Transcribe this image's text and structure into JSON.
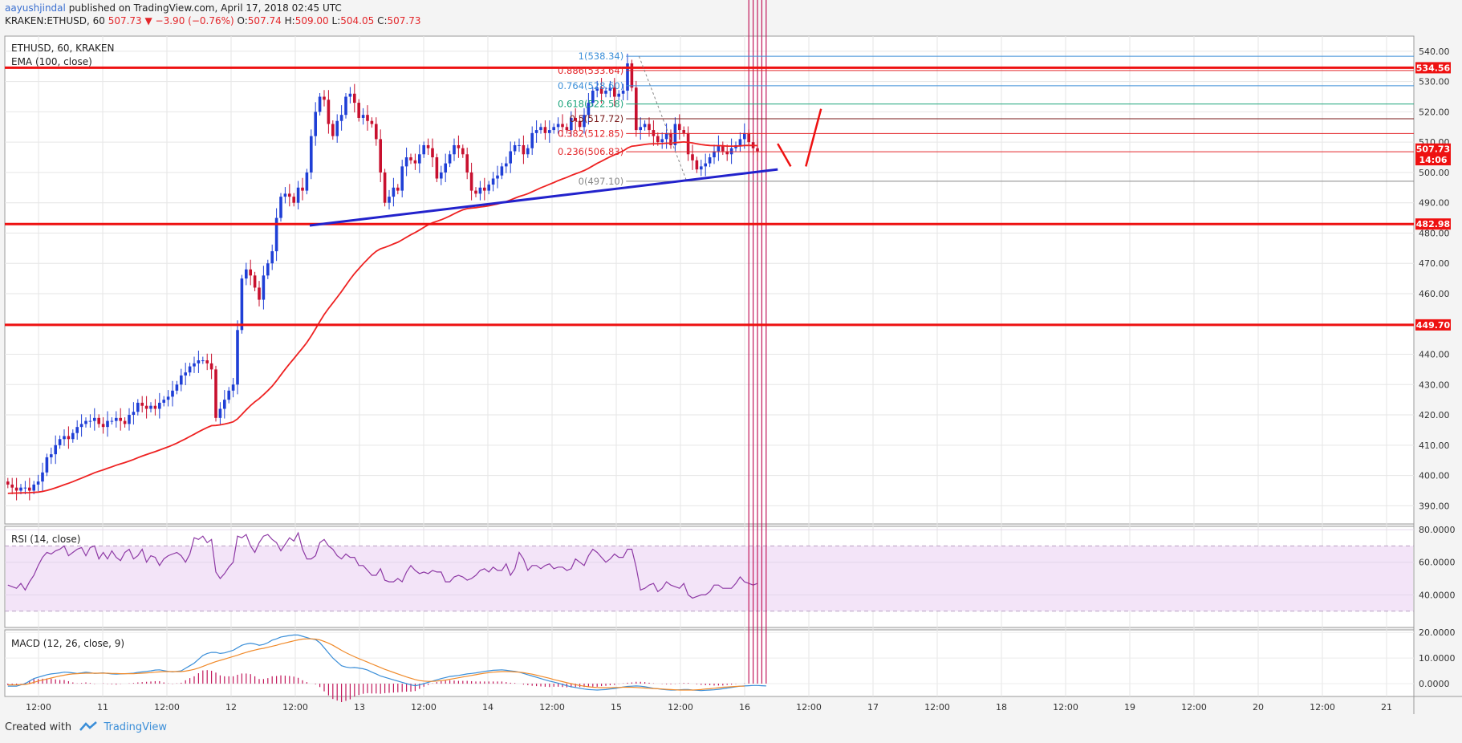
{
  "header": {
    "author": "aayushjindal",
    "published": "published on TradingView.com, April 17, 2018 02:45 UTC",
    "symbol": "KRAKEN:ETHUSD, 60",
    "change": "507.73 ▼ −3.90 (−0.76%)",
    "o_label": "O:",
    "o": "507.74",
    "h_label": "H:",
    "h": "509.00",
    "l_label": "L:",
    "l": "504.05",
    "c_label": "C:",
    "c": "507.73"
  },
  "legend": {
    "main": "ETHUSD, 60, KRAKEN",
    "ema": "EMA (100, close)",
    "rsi": "RSI (14, close)",
    "macd": "MACD (12, 26, close, 9)"
  },
  "footer": {
    "created": "Created with",
    "brand": "TradingView"
  },
  "colors": {
    "up": "#1f3fd6",
    "down": "#c8102e",
    "ema": "#ee2222",
    "hline": "#ee1111",
    "trend": "#2222cc",
    "rsi": "#8e3aa5",
    "rsi_band": "#f3e4f8",
    "macd": "#3a8ed8",
    "signal": "#f08a2a",
    "hist": "#c2185b"
  },
  "chart_data": [
    {
      "type": "candlestick",
      "title": "ETHUSD, 60, KRAKEN",
      "xlabel": "",
      "ylabel": "",
      "x_ticks": [
        "12:00",
        "11",
        "12:00",
        "12",
        "12:00",
        "13",
        "12:00",
        "14",
        "12:00",
        "15",
        "12:00",
        "16",
        "12:00",
        "17",
        "12:00",
        "18",
        "12:00",
        "19",
        "12:00",
        "20",
        "12:00",
        "21"
      ],
      "y_ticks": [
        390,
        400,
        410,
        420,
        430,
        440,
        450,
        460,
        470,
        480,
        490,
        500,
        510,
        520,
        530,
        540
      ],
      "ylim": [
        384,
        545
      ],
      "closes": [
        397,
        396,
        395,
        396,
        396,
        395,
        397,
        398,
        401,
        406,
        407,
        410,
        412,
        413,
        412,
        414,
        416,
        417,
        418,
        418,
        419,
        417,
        416,
        418,
        418,
        419,
        418,
        417,
        420,
        421,
        424,
        423,
        422,
        423,
        422,
        424,
        425,
        426,
        428,
        430,
        433,
        434,
        436,
        437,
        438,
        438,
        437,
        435,
        419,
        422,
        425,
        428,
        430,
        448,
        465,
        468,
        466,
        462,
        458,
        466,
        470,
        474,
        485,
        492,
        493,
        492,
        490,
        495,
        494,
        500,
        512,
        520,
        525,
        524,
        516,
        512,
        517,
        519,
        525,
        526,
        523,
        518,
        519,
        517,
        516,
        511,
        500,
        490,
        492,
        495,
        494,
        502,
        505,
        504,
        503,
        506,
        509,
        508,
        505,
        498,
        500,
        503,
        506,
        509,
        508,
        506,
        500,
        494,
        493,
        495,
        494,
        496,
        498,
        499,
        502,
        503,
        507,
        509,
        509,
        506,
        508,
        513,
        514,
        515,
        513,
        514,
        515,
        516,
        515,
        514,
        518,
        517,
        515,
        519,
        523,
        527,
        528,
        526,
        527,
        528,
        525,
        526,
        527,
        536,
        528,
        514,
        515,
        516,
        514,
        512,
        510,
        511,
        513,
        509,
        516,
        514,
        513,
        506,
        504,
        501,
        502,
        503,
        505,
        507,
        509,
        507,
        506,
        508,
        509,
        511,
        513,
        510,
        508,
        507
      ],
      "moving_average": {
        "name": "EMA (100, close)",
        "start": 394,
        "end": 499
      },
      "horizontal_levels": [
        534.56,
        482.98,
        449.7
      ],
      "fibonacci": [
        {
          "label": "1(538.34)",
          "value": 538.34
        },
        {
          "label": "0.886(533.64)",
          "value": 533.64
        },
        {
          "label": "0.764(528.60)",
          "value": 528.6
        },
        {
          "label": "0.618(522.58)",
          "value": 522.58
        },
        {
          "label": "0.5(517.72)",
          "value": 517.72
        },
        {
          "label": "0.382(512.85)",
          "value": 512.85
        },
        {
          "label": "0.236(506.83)",
          "value": 506.83
        },
        {
          "label": "0(497.10)",
          "value": 497.1
        }
      ],
      "price_labels": [
        {
          "text": "534.56",
          "value": 534.56
        },
        {
          "text": "507.73",
          "value": 507.73
        },
        {
          "text": "14:06",
          "value": 504.2
        },
        {
          "text": "482.98",
          "value": 482.98
        },
        {
          "text": "449.70",
          "value": 449.7
        }
      ]
    },
    {
      "type": "line",
      "title": "RSI (14, close)",
      "y_ticks": [
        "80.0000",
        "60.0000",
        "40.0000"
      ],
      "ylim": [
        20,
        82
      ],
      "bands": [
        70,
        30
      ],
      "values": [
        46,
        45,
        44,
        47,
        43,
        48,
        52,
        58,
        63,
        66,
        65,
        67,
        68,
        70,
        64,
        66,
        68,
        69,
        64,
        69,
        70,
        62,
        66,
        62,
        67,
        63,
        61,
        66,
        68,
        62,
        64,
        68,
        60,
        64,
        63,
        58,
        62,
        64,
        65,
        66,
        64,
        60,
        65,
        75,
        74,
        76,
        72,
        74,
        54,
        50,
        53,
        57,
        60,
        76,
        75,
        77,
        70,
        66,
        72,
        76,
        77,
        74,
        72,
        67,
        71,
        75,
        73,
        78,
        68,
        62,
        62,
        64,
        72,
        74,
        70,
        68,
        64,
        62,
        65,
        63,
        63,
        58,
        58,
        55,
        52,
        52,
        56,
        49,
        48,
        48,
        50,
        48,
        54,
        58,
        55,
        53,
        54,
        53,
        55,
        54,
        54,
        48,
        48,
        51,
        52,
        51,
        49,
        50,
        52,
        55,
        56,
        54,
        57,
        55,
        55,
        59,
        52,
        56,
        66,
        62,
        55,
        58,
        58,
        56,
        58,
        59,
        56,
        57,
        57,
        55,
        56,
        62,
        60,
        58,
        64,
        68,
        66,
        63,
        60,
        62,
        65,
        63,
        63,
        68,
        68,
        57,
        43,
        44,
        46,
        47,
        42,
        44,
        48,
        46,
        45,
        44,
        47,
        40,
        38,
        39,
        40,
        40,
        42,
        46,
        46,
        44,
        44,
        44,
        47,
        51,
        48,
        47,
        46,
        47
      ]
    },
    {
      "type": "line",
      "title": "MACD (12, 26, close, 9)",
      "y_ticks": [
        "20.0000",
        "10.0000",
        "0.0000"
      ],
      "ylim": [
        -5,
        21
      ],
      "series": [
        {
          "name": "MACD",
          "values": [
            -1,
            -1,
            -1,
            -0.5,
            0,
            1,
            2,
            2.5,
            3,
            3.5,
            3.8,
            4,
            4.2,
            4.5,
            4.4,
            4.2,
            4,
            4.2,
            4.5,
            4.3,
            4,
            4.1,
            4.2,
            4,
            3.8,
            3.7,
            3.8,
            3.9,
            4,
            4.1,
            4.4,
            4.6,
            4.8,
            5,
            5.3,
            5.4,
            5.1,
            4.8,
            4.6,
            4.8,
            5,
            6,
            7,
            8,
            9.5,
            11,
            11.8,
            12.2,
            12.2,
            11.8,
            12,
            12.5,
            13,
            14,
            15,
            15.5,
            15.8,
            15.5,
            15,
            15.3,
            16,
            17,
            17.5,
            18.2,
            18.5,
            18.8,
            19,
            19,
            18.5,
            18,
            17.5,
            17.2,
            16,
            14,
            12,
            10,
            8.5,
            7,
            6.5,
            6.2,
            6.3,
            6.1,
            5.8,
            5.3,
            4.5,
            3.8,
            3,
            2.5,
            2,
            1.5,
            1,
            0.5,
            0,
            -0.5,
            -0.8,
            -0.5,
            0,
            0.5,
            1,
            1.5,
            2,
            2.4,
            2.8,
            3,
            3.2,
            3.5,
            3.8,
            4,
            4.2,
            4.5,
            4.8,
            5,
            5.2,
            5.3,
            5.4,
            5.2,
            5,
            4.8,
            4.5,
            4,
            3.5,
            3,
            2.5,
            2,
            1.5,
            1,
            0.6,
            0.2,
            -0.3,
            -0.8,
            -1.2,
            -1.5,
            -1.8,
            -2.1,
            -2.3,
            -2.4,
            -2.5,
            -2.4,
            -2.3,
            -2.1,
            -1.9,
            -1.6,
            -1.3,
            -1.1,
            -1,
            -0.9,
            -1,
            -1.2,
            -1.5,
            -1.8,
            -2,
            -2.2,
            -2.4,
            -2.5,
            -2.5,
            -2.4,
            -2.3,
            -2.3,
            -2.5,
            -2.6,
            -2.7,
            -2.6,
            -2.5,
            -2.4,
            -2.2,
            -2,
            -1.7,
            -1.5,
            -1.2,
            -1,
            -0.9,
            -0.8,
            -0.7,
            -0.7,
            -0.8,
            -0.9
          ]
        },
        {
          "name": "Signal",
          "values": [
            -0.5,
            -0.5,
            -0.5,
            -0.4,
            -0.3,
            0,
            0.5,
            1,
            1.4,
            1.8,
            2.2,
            2.6,
            3,
            3.3,
            3.6,
            3.8,
            3.9,
            4,
            4.1,
            4.1,
            4.1,
            4.1,
            4.1,
            4.1,
            4,
            4,
            3.9,
            3.9,
            3.9,
            3.9,
            4,
            4.1,
            4.2,
            4.3,
            4.5,
            4.6,
            4.7,
            4.7,
            4.7,
            4.7,
            4.7,
            4.9,
            5.2,
            5.6,
            6.1,
            6.7,
            7.4,
            8,
            8.6,
            9.1,
            9.6,
            10.1,
            10.6,
            11.1,
            11.7,
            12.2,
            12.7,
            13.1,
            13.5,
            13.8,
            14.2,
            14.6,
            15,
            15.5,
            15.9,
            16.3,
            16.7,
            17.1,
            17.4,
            17.5,
            17.5,
            17.4,
            17.1,
            16.5,
            15.8,
            15,
            14,
            13,
            12.1,
            11.3,
            10.5,
            9.8,
            9.1,
            8.4,
            7.7,
            7,
            6.3,
            5.6,
            5,
            4.4,
            3.8,
            3.2,
            2.6,
            2.1,
            1.6,
            1.2,
            1,
            0.9,
            0.9,
            1,
            1.2,
            1.4,
            1.7,
            2,
            2.3,
            2.6,
            2.9,
            3.2,
            3.5,
            3.8,
            4.1,
            4.3,
            4.5,
            4.6,
            4.7,
            4.7,
            4.7,
            4.6,
            4.5,
            4.3,
            4,
            3.7,
            3.3,
            2.9,
            2.5,
            2.1,
            1.6,
            1.2,
            0.8,
            0.4,
            0,
            -0.4,
            -0.7,
            -1,
            -1.2,
            -1.4,
            -1.5,
            -1.6,
            -1.6,
            -1.6,
            -1.5,
            -1.5,
            -1.4,
            -1.4,
            -1.4,
            -1.5,
            -1.6,
            -1.7,
            -1.8,
            -1.9,
            -2,
            -2.1,
            -2.2,
            -2.3,
            -2.4,
            -2.5,
            -2.5,
            -2.5,
            -2.5,
            -2.4,
            -2.3,
            -2.1,
            -2,
            -1.8,
            -1.6,
            -1.4,
            -1.3,
            -1.2,
            -1.1,
            -1,
            -1
          ]
        }
      ]
    }
  ]
}
